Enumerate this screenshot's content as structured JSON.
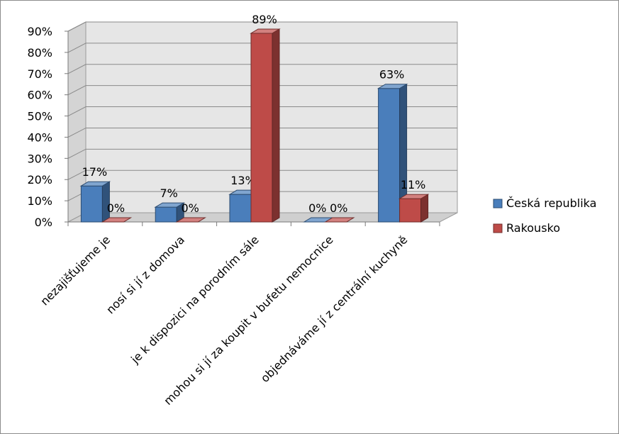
{
  "chart_data": {
    "type": "bar",
    "categories": [
      "nezajišťujeme je",
      "nosí si jí z domova",
      "je k dispozici na porodním sále",
      "mohou si jí za koupit v bufetu nemocnice",
      "objednáváme jí z centrální kuchyně"
    ],
    "series": [
      {
        "name": "Česká republika",
        "values": [
          17,
          7,
          13,
          0,
          63
        ],
        "labels": [
          "17%",
          "7%",
          "13%",
          "0%",
          "63%"
        ],
        "color": "#4a7ebb"
      },
      {
        "name": "Rakousko",
        "values": [
          0,
          0,
          89,
          0,
          11
        ],
        "labels": [
          "0%",
          "0%",
          "89%",
          "0%",
          "11%"
        ],
        "color": "#be4b48"
      }
    ],
    "ylim": [
      0,
      90
    ],
    "yticks": [
      "0%",
      "10%",
      "20%",
      "30%",
      "40%",
      "50%",
      "60%",
      "70%",
      "80%",
      "90%"
    ],
    "grid": true,
    "legend": "right",
    "bar_style": "3d"
  }
}
